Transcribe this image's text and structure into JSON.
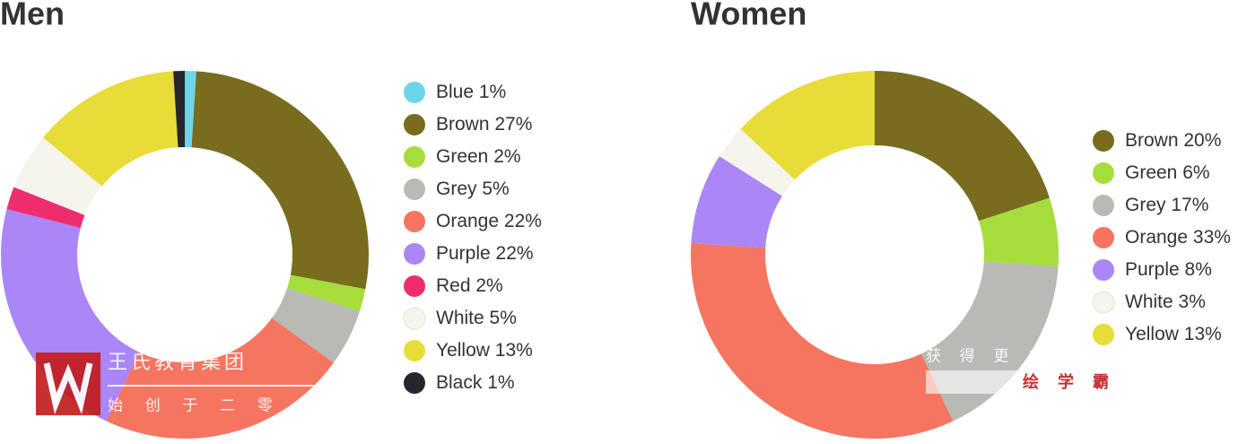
{
  "chart_data": [
    {
      "type": "pie",
      "title": "Men",
      "categories": [
        "Blue",
        "Brown",
        "Green",
        "Grey",
        "Orange",
        "Purple",
        "Red",
        "White",
        "Yellow",
        "Black"
      ],
      "values": [
        1,
        27,
        2,
        5,
        22,
        22,
        2,
        5,
        13,
        1
      ],
      "value_labels": [
        "1%",
        "27%",
        "2%",
        "5%",
        "22%",
        "22%",
        "2%",
        "5%",
        "13%",
        "1%"
      ],
      "colors": [
        "#6dd5ea",
        "#786c1e",
        "#a6dd3d",
        "#b9b9b5",
        "#f57560",
        "#ab86f6",
        "#ee2d6f",
        "#f5f5ee",
        "#e8dc38",
        "#25272a"
      ]
    },
    {
      "type": "pie",
      "title": "Women",
      "categories": [
        "Brown",
        "Green",
        "Grey",
        "Orange",
        "Purple",
        "White",
        "Yellow"
      ],
      "values": [
        20,
        6,
        17,
        33,
        8,
        3,
        13
      ],
      "value_labels": [
        "20%",
        "6%",
        "17%",
        "33%",
        "8%",
        "3%",
        "13%"
      ],
      "colors": [
        "#786c1e",
        "#a6dd3d",
        "#b9b9b5",
        "#f57560",
        "#ab86f6",
        "#f5f5ee",
        "#e8dc38"
      ]
    }
  ],
  "watermark": {
    "brand": "王氏教育集团",
    "tagline": "始 创 于 二 零",
    "more": "获 得 更 多",
    "app": "绘 学 霸"
  }
}
